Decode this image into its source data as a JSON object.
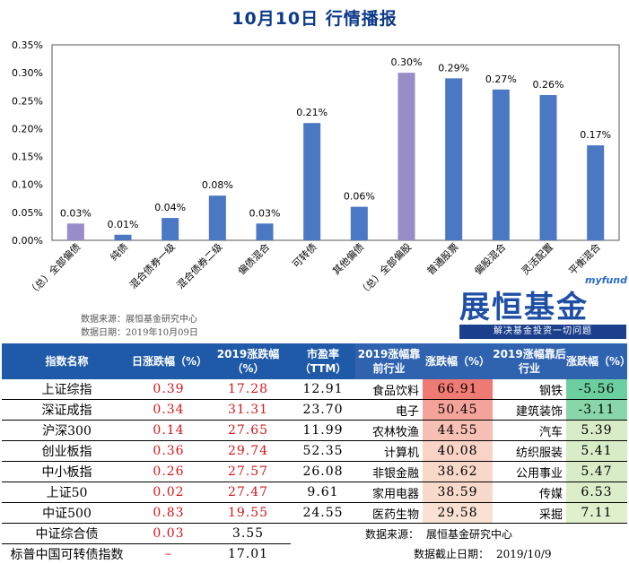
{
  "title": "10月10日  行情播报",
  "chart_data": {
    "type": "bar",
    "categories": [
      "（总）全部偏债",
      "纯债",
      "混合债券一级",
      "混合债券二级",
      "偏债混合",
      "可转债",
      "其他偏债",
      "（总）全部偏股",
      "普通股票",
      "偏股混合",
      "灵活配置",
      "平衡混合"
    ],
    "values": [
      0.03,
      0.01,
      0.04,
      0.08,
      0.03,
      0.21,
      0.06,
      0.3,
      0.29,
      0.27,
      0.26,
      0.17
    ],
    "data_labels": [
      "0.03%",
      "0.01%",
      "0.04%",
      "0.08%",
      "0.03%",
      "0.21%",
      "0.06%",
      "0.30%",
      "0.29%",
      "0.27%",
      "0.26%",
      "0.17%"
    ],
    "highlight": [
      true,
      false,
      false,
      false,
      false,
      false,
      false,
      true,
      false,
      false,
      false,
      false
    ],
    "yticks": [
      "0.00%",
      "0.05%",
      "0.10%",
      "0.15%",
      "0.20%",
      "0.25%",
      "0.30%",
      "0.35%"
    ],
    "ylim": [
      0,
      0.35
    ],
    "colors": {
      "normal": "#4a78c2",
      "highlight": "#9a8cc6"
    },
    "xlabel": "",
    "ylabel": ""
  },
  "source_lines": [
    "数据来源：展恒基金研究中心",
    "数据日期：2019年10月09日"
  ],
  "logo": {
    "small": "myfund",
    "main": "展恒基金",
    "tagline": "解决基金投资一切问题"
  },
  "table": {
    "headers": [
      "指数名称",
      "日涨跌幅（%）",
      "2019涨跌幅（%）",
      "市盈率（TTM）",
      "2019涨幅靠前行业",
      "涨跌幅（%）",
      "2019涨幅靠后行业",
      "涨跌幅（%）"
    ],
    "rows": [
      [
        "上证综指",
        "0.39",
        "17.28",
        "12.91",
        "食品饮料",
        "66.91",
        "钢铁",
        "-5.56"
      ],
      [
        "深证成指",
        "0.34",
        "31.31",
        "23.70",
        "电子",
        "50.45",
        "建筑装饰",
        "-3.11"
      ],
      [
        "沪深300",
        "0.14",
        "27.65",
        "11.99",
        "农林牧渔",
        "44.55",
        "汽车",
        "5.39"
      ],
      [
        "创业板指",
        "0.36",
        "29.74",
        "52.35",
        "计算机",
        "40.08",
        "纺织服装",
        "5.41"
      ],
      [
        "中小板指",
        "0.26",
        "27.57",
        "26.08",
        "非银金融",
        "38.62",
        "公用事业",
        "5.47"
      ],
      [
        "上证50",
        "0.02",
        "27.47",
        "9.61",
        "家用电器",
        "38.59",
        "传媒",
        "6.53"
      ],
      [
        "中证500",
        "0.83",
        "19.55",
        "24.55",
        "医药生物",
        "29.58",
        "采掘",
        "7.11"
      ]
    ],
    "extra_rows": [
      [
        "中证综合债",
        "0.03",
        "3.55"
      ],
      [
        "标普中国可转债指数",
        "–",
        "17.01"
      ]
    ],
    "footer": {
      "source_label": "数据来源：",
      "source_value": "展恒基金研究中心",
      "date_label": "数据截止日期：",
      "date_value": "2019/10/9"
    },
    "cell_colors": {
      "top": [
        "#ef7a73",
        "#f4a39a",
        "#f7c0b4",
        "#f8d3c6",
        "#f8d8c9",
        "#f8dacc",
        "#f9e1d3"
      ],
      "bottom": [
        "#6ccf9f",
        "#88d6aa",
        "#d7ecc7",
        "#d7ecc7",
        "#d7ecc7",
        "#dcedc9",
        "#dff0cc"
      ]
    }
  }
}
